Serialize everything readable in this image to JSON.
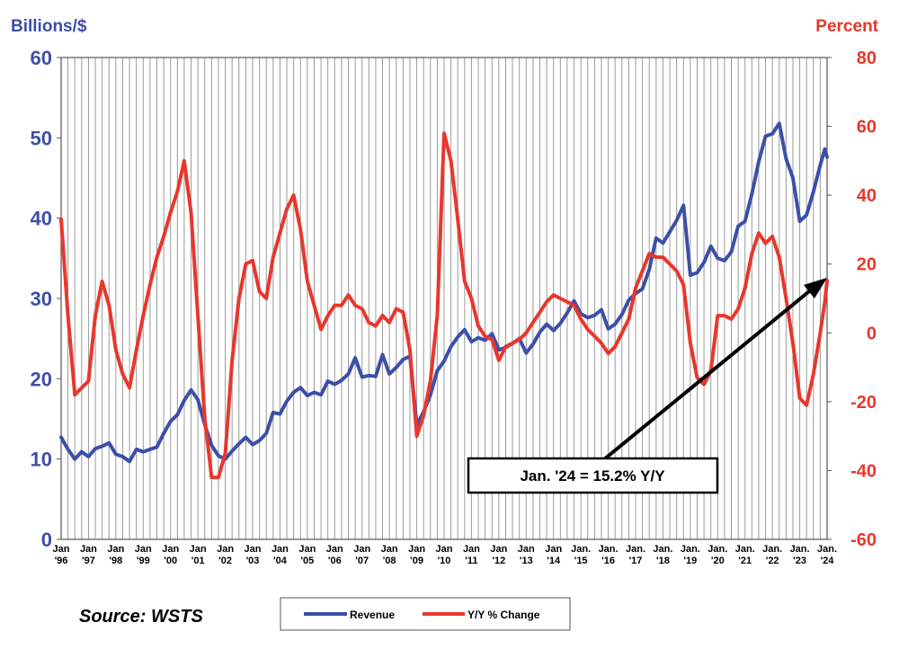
{
  "chart_data": {
    "type": "line",
    "left_axis_title": "Billions/$",
    "right_axis_title": "Percent",
    "left_ylim": [
      0,
      60
    ],
    "right_ylim": [
      -60,
      80
    ],
    "left_ticks": [
      "0",
      "10",
      "20",
      "30",
      "40",
      "50",
      "60"
    ],
    "right_ticks": [
      "-60",
      "-40",
      "-20",
      "0",
      "20",
      "40",
      "60",
      "80"
    ],
    "x_tick_labels": [
      [
        "Jan",
        "'96"
      ],
      [
        "Jan",
        "'97"
      ],
      [
        "Jan",
        "'98"
      ],
      [
        "Jan",
        "'99"
      ],
      [
        "Jan",
        "'00"
      ],
      [
        "Jan",
        "'01"
      ],
      [
        "Jan",
        "'02"
      ],
      [
        "Jan",
        "'03"
      ],
      [
        "Jan",
        "'04"
      ],
      [
        "Jan",
        "'05"
      ],
      [
        "Jan",
        "'06"
      ],
      [
        "Jan",
        "'07"
      ],
      [
        "Jan",
        "'08"
      ],
      [
        "Jan",
        "'09"
      ],
      [
        "Jan",
        "'10"
      ],
      [
        "Jan",
        "'11"
      ],
      [
        "Jan",
        "'12"
      ],
      [
        "Jan",
        "'13"
      ],
      [
        "Jan",
        "'14"
      ],
      [
        "Jan.",
        "'15"
      ],
      [
        "Jan.",
        "'16"
      ],
      [
        "Jan.",
        "'17"
      ],
      [
        "Jan.",
        "'18"
      ],
      [
        "Jan.",
        "'19"
      ],
      [
        "Jan.",
        "'20"
      ],
      [
        "Jan.",
        "'21"
      ],
      [
        "Jan.",
        "'22"
      ],
      [
        "Jan.",
        "'23"
      ],
      [
        "Jan.",
        "'24"
      ]
    ],
    "grid": "vertical",
    "legend_position": "bottom",
    "series": [
      {
        "name": "Revenue",
        "axis": "left",
        "color": "#3c4fa8",
        "points": [
          [
            "1996-01",
            12.7
          ],
          [
            "1996-04",
            11.2
          ],
          [
            "1996-07",
            10.0
          ],
          [
            "1996-10",
            10.9
          ],
          [
            "1997-01",
            10.3
          ],
          [
            "1997-04",
            11.3
          ],
          [
            "1997-07",
            11.6
          ],
          [
            "1997-10",
            12.0
          ],
          [
            "1998-01",
            10.6
          ],
          [
            "1998-04",
            10.3
          ],
          [
            "1998-07",
            9.7
          ],
          [
            "1998-10",
            11.2
          ],
          [
            "1999-01",
            10.9
          ],
          [
            "1999-04",
            11.2
          ],
          [
            "1999-07",
            11.5
          ],
          [
            "1999-10",
            13.2
          ],
          [
            "2000-01",
            14.7
          ],
          [
            "2000-04",
            15.5
          ],
          [
            "2000-07",
            17.3
          ],
          [
            "2000-10",
            18.6
          ],
          [
            "2001-01",
            17.4
          ],
          [
            "2001-04",
            14.3
          ],
          [
            "2001-07",
            11.7
          ],
          [
            "2001-10",
            10.4
          ],
          [
            "2002-01",
            10.0
          ],
          [
            "2002-04",
            11.0
          ],
          [
            "2002-07",
            11.9
          ],
          [
            "2002-10",
            12.7
          ],
          [
            "2003-01",
            11.8
          ],
          [
            "2003-04",
            12.3
          ],
          [
            "2003-07",
            13.2
          ],
          [
            "2003-10",
            15.8
          ],
          [
            "2004-01",
            15.6
          ],
          [
            "2004-04",
            17.2
          ],
          [
            "2004-07",
            18.3
          ],
          [
            "2004-10",
            18.9
          ],
          [
            "2005-01",
            17.9
          ],
          [
            "2005-04",
            18.3
          ],
          [
            "2005-07",
            18.0
          ],
          [
            "2005-10",
            19.7
          ],
          [
            "2006-01",
            19.3
          ],
          [
            "2006-04",
            19.8
          ],
          [
            "2006-07",
            20.6
          ],
          [
            "2006-10",
            22.6
          ],
          [
            "2007-01",
            20.2
          ],
          [
            "2007-04",
            20.4
          ],
          [
            "2007-07",
            20.3
          ],
          [
            "2007-10",
            23.0
          ],
          [
            "2008-01",
            20.6
          ],
          [
            "2008-04",
            21.4
          ],
          [
            "2008-07",
            22.4
          ],
          [
            "2008-10",
            22.8
          ],
          [
            "2009-01",
            14.2
          ],
          [
            "2009-04",
            15.9
          ],
          [
            "2009-07",
            18.0
          ],
          [
            "2009-10",
            21.0
          ],
          [
            "2010-01",
            22.2
          ],
          [
            "2010-04",
            24.0
          ],
          [
            "2010-07",
            25.2
          ],
          [
            "2010-10",
            26.1
          ],
          [
            "2011-01",
            24.6
          ],
          [
            "2011-04",
            25.1
          ],
          [
            "2011-07",
            24.8
          ],
          [
            "2011-10",
            25.6
          ],
          [
            "2012-01",
            23.6
          ],
          [
            "2012-04",
            23.9
          ],
          [
            "2012-07",
            24.4
          ],
          [
            "2012-10",
            25.0
          ],
          [
            "2013-01",
            23.2
          ],
          [
            "2013-04",
            24.3
          ],
          [
            "2013-07",
            25.8
          ],
          [
            "2013-10",
            26.8
          ],
          [
            "2014-01",
            26.0
          ],
          [
            "2014-04",
            26.9
          ],
          [
            "2014-07",
            28.2
          ],
          [
            "2014-10",
            29.7
          ],
          [
            "2015-01",
            28.1
          ],
          [
            "2015-04",
            27.6
          ],
          [
            "2015-07",
            27.9
          ],
          [
            "2015-10",
            28.6
          ],
          [
            "2016-01",
            26.2
          ],
          [
            "2016-04",
            26.8
          ],
          [
            "2016-07",
            28.0
          ],
          [
            "2016-10",
            29.8
          ],
          [
            "2017-01",
            30.6
          ],
          [
            "2017-04",
            31.2
          ],
          [
            "2017-07",
            33.6
          ],
          [
            "2017-10",
            37.5
          ],
          [
            "2018-01",
            36.9
          ],
          [
            "2018-04",
            38.3
          ],
          [
            "2018-07",
            39.7
          ],
          [
            "2018-10",
            41.6
          ],
          [
            "2019-01",
            32.9
          ],
          [
            "2019-04",
            33.2
          ],
          [
            "2019-07",
            34.5
          ],
          [
            "2019-10",
            36.5
          ],
          [
            "2020-01",
            35.0
          ],
          [
            "2020-04",
            34.7
          ],
          [
            "2020-07",
            35.8
          ],
          [
            "2020-10",
            39.0
          ],
          [
            "2021-01",
            39.6
          ],
          [
            "2021-04",
            43.0
          ],
          [
            "2021-07",
            47.0
          ],
          [
            "2021-10",
            50.2
          ],
          [
            "2022-01",
            50.5
          ],
          [
            "2022-04",
            51.8
          ],
          [
            "2022-07",
            47.4
          ],
          [
            "2022-10",
            45.0
          ],
          [
            "2023-01",
            39.6
          ],
          [
            "2023-04",
            40.4
          ],
          [
            "2023-07",
            43.3
          ],
          [
            "2023-10",
            46.6
          ],
          [
            "2023-12",
            48.6
          ],
          [
            "2024-01",
            47.6
          ]
        ]
      },
      {
        "name": "Y/Y % Change",
        "axis": "right",
        "color": "#e8372c",
        "points": [
          [
            "1996-01",
            33.0
          ],
          [
            "1996-04",
            5.0
          ],
          [
            "1996-07",
            -18.0
          ],
          [
            "1996-10",
            -16.0
          ],
          [
            "1997-01",
            -14.0
          ],
          [
            "1997-04",
            5.0
          ],
          [
            "1997-07",
            15.0
          ],
          [
            "1997-10",
            8.0
          ],
          [
            "1998-01",
            -5.0
          ],
          [
            "1998-04",
            -12.0
          ],
          [
            "1998-07",
            -16.0
          ],
          [
            "1998-10",
            -5.0
          ],
          [
            "1999-01",
            5.0
          ],
          [
            "1999-04",
            14.0
          ],
          [
            "1999-07",
            22.0
          ],
          [
            "1999-10",
            28.0
          ],
          [
            "2000-01",
            35.0
          ],
          [
            "2000-04",
            41.0
          ],
          [
            "2000-07",
            50.0
          ],
          [
            "2000-10",
            35.0
          ],
          [
            "2001-01",
            5.0
          ],
          [
            "2001-04",
            -25.0
          ],
          [
            "2001-07",
            -42.0
          ],
          [
            "2001-10",
            -42.0
          ],
          [
            "2002-01",
            -35.0
          ],
          [
            "2002-04",
            -8.0
          ],
          [
            "2002-07",
            10.0
          ],
          [
            "2002-10",
            20.0
          ],
          [
            "2003-01",
            21.0
          ],
          [
            "2003-04",
            12.0
          ],
          [
            "2003-07",
            10.0
          ],
          [
            "2003-10",
            22.0
          ],
          [
            "2004-01",
            29.0
          ],
          [
            "2004-04",
            36.0
          ],
          [
            "2004-07",
            40.0
          ],
          [
            "2004-10",
            30.0
          ],
          [
            "2005-01",
            15.0
          ],
          [
            "2005-04",
            8.0
          ],
          [
            "2005-07",
            1.0
          ],
          [
            "2005-10",
            5.0
          ],
          [
            "2006-01",
            8.0
          ],
          [
            "2006-04",
            8.0
          ],
          [
            "2006-07",
            11.0
          ],
          [
            "2006-10",
            8.0
          ],
          [
            "2007-01",
            7.0
          ],
          [
            "2007-04",
            3.0
          ],
          [
            "2007-07",
            2.0
          ],
          [
            "2007-10",
            5.0
          ],
          [
            "2008-01",
            3.0
          ],
          [
            "2008-04",
            7.0
          ],
          [
            "2008-07",
            6.0
          ],
          [
            "2008-10",
            -5.0
          ],
          [
            "2009-01",
            -30.0
          ],
          [
            "2009-04",
            -24.0
          ],
          [
            "2009-07",
            -14.0
          ],
          [
            "2009-10",
            5.0
          ],
          [
            "2010-01",
            58.0
          ],
          [
            "2010-04",
            50.0
          ],
          [
            "2010-07",
            33.0
          ],
          [
            "2010-10",
            15.0
          ],
          [
            "2011-01",
            10.0
          ],
          [
            "2011-04",
            2.0
          ],
          [
            "2011-07",
            -1.0
          ],
          [
            "2011-10",
            -2.0
          ],
          [
            "2012-01",
            -8.0
          ],
          [
            "2012-04",
            -4.0
          ],
          [
            "2012-07",
            -3.0
          ],
          [
            "2012-10",
            -2.0
          ],
          [
            "2013-01",
            0.0
          ],
          [
            "2013-04",
            3.0
          ],
          [
            "2013-07",
            6.0
          ],
          [
            "2013-10",
            9.0
          ],
          [
            "2014-01",
            11.0
          ],
          [
            "2014-04",
            10.0
          ],
          [
            "2014-07",
            9.0
          ],
          [
            "2014-10",
            8.0
          ],
          [
            "2015-01",
            4.0
          ],
          [
            "2015-04",
            1.0
          ],
          [
            "2015-07",
            -1.0
          ],
          [
            "2015-10",
            -3.0
          ],
          [
            "2016-01",
            -6.0
          ],
          [
            "2016-04",
            -4.0
          ],
          [
            "2016-07",
            0.0
          ],
          [
            "2016-10",
            4.0
          ],
          [
            "2017-01",
            13.0
          ],
          [
            "2017-04",
            18.0
          ],
          [
            "2017-07",
            23.0
          ],
          [
            "2017-10",
            22.0
          ],
          [
            "2018-01",
            22.0
          ],
          [
            "2018-04",
            20.0
          ],
          [
            "2018-07",
            18.0
          ],
          [
            "2018-10",
            14.0
          ],
          [
            "2019-01",
            -3.0
          ],
          [
            "2019-04",
            -13.0
          ],
          [
            "2019-07",
            -15.0
          ],
          [
            "2019-10",
            -11.0
          ],
          [
            "2020-01",
            5.0
          ],
          [
            "2020-04",
            5.0
          ],
          [
            "2020-07",
            4.0
          ],
          [
            "2020-10",
            7.0
          ],
          [
            "2021-01",
            13.0
          ],
          [
            "2021-04",
            23.0
          ],
          [
            "2021-07",
            29.0
          ],
          [
            "2021-10",
            26.0
          ],
          [
            "2022-01",
            28.0
          ],
          [
            "2022-04",
            22.0
          ],
          [
            "2022-07",
            10.0
          ],
          [
            "2022-10",
            -3.0
          ],
          [
            "2023-01",
            -19.0
          ],
          [
            "2023-04",
            -21.0
          ],
          [
            "2023-07",
            -12.0
          ],
          [
            "2023-10",
            0.0
          ],
          [
            "2023-12",
            9.0
          ],
          [
            "2024-01",
            15.2
          ]
        ]
      }
    ],
    "annotation": "Jan. '24 = 15.2% Y/Y",
    "source": "Source: WSTS"
  },
  "colors": {
    "revenue": "#3c4fa8",
    "yoy": "#e8372c",
    "grid": "#9a9a9a"
  }
}
